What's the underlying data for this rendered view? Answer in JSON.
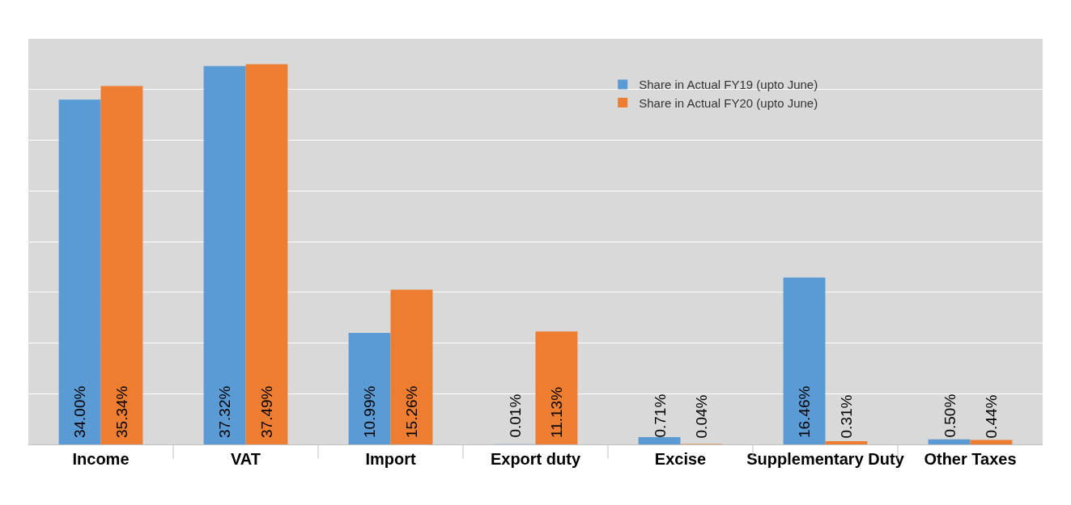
{
  "chart_data": {
    "type": "bar",
    "categories": [
      "Income",
      "VAT",
      "Import",
      "Export duty",
      "Excise",
      "Supplementary Duty",
      "Other Taxes"
    ],
    "series": [
      {
        "name": "Share in Actual FY19 (upto June)",
        "color": "#5b9bd5",
        "values": [
          34.0,
          37.32,
          10.99,
          0.01,
          0.71,
          16.46,
          0.5
        ],
        "value_labels": [
          "34.00%",
          "37.32%",
          "10.99%",
          "0.01%",
          "0.71%",
          "16.46%",
          "0.50%"
        ]
      },
      {
        "name": "Share in Actual FY20 (upto June)",
        "color": "#ed7d31",
        "values": [
          35.34,
          37.49,
          15.26,
          11.13,
          0.04,
          0.31,
          0.44
        ],
        "value_labels": [
          "35.34%",
          "37.49%",
          "15.26%",
          "11.13%",
          "0.04%",
          "0.31%",
          "0.44%"
        ]
      }
    ],
    "ylim": [
      0,
      40
    ],
    "yticks": [
      {
        "value": 0,
        "label": null
      },
      {
        "value": 5,
        "label": null
      },
      {
        "value": 10,
        "label": null
      },
      {
        "value": 15,
        "label": null
      },
      {
        "value": 20,
        "label": null
      },
      {
        "value": 25,
        "label": null
      },
      {
        "value": 30,
        "label": null
      },
      {
        "value": 35,
        "label": null
      },
      {
        "value": 40,
        "label": null
      }
    ],
    "grid": "y",
    "legend": "top right",
    "tick_labels": "x"
  }
}
